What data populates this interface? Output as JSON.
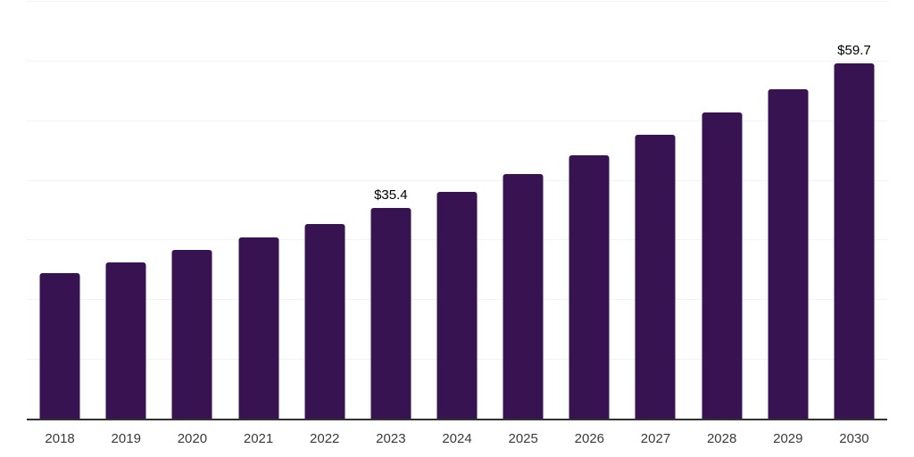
{
  "chart_data": {
    "type": "bar",
    "title": "",
    "xlabel": "",
    "ylabel": "",
    "categories": [
      "2018",
      "2019",
      "2020",
      "2021",
      "2022",
      "2023",
      "2024",
      "2025",
      "2026",
      "2027",
      "2028",
      "2029",
      "2030"
    ],
    "values": [
      24.6,
      26.4,
      28.4,
      30.5,
      32.8,
      35.4,
      38.1,
      41.1,
      44.3,
      47.7,
      51.4,
      55.4,
      59.7
    ],
    "data_labels": [
      {
        "category": "2023",
        "text": "$35.4"
      },
      {
        "category": "2030",
        "text": "$59.7"
      }
    ],
    "ylim": [
      0,
      70
    ],
    "gridline_step": 10,
    "grid": true,
    "legend": false,
    "y_tick_labels_visible": false,
    "colors": {
      "bar": "#371352",
      "data_label_text": "#000000",
      "x_tick_text": "#3a3a3a",
      "gridline": "#f3f3f3",
      "axis_line": "#333333",
      "background": "#ffffff"
    }
  }
}
